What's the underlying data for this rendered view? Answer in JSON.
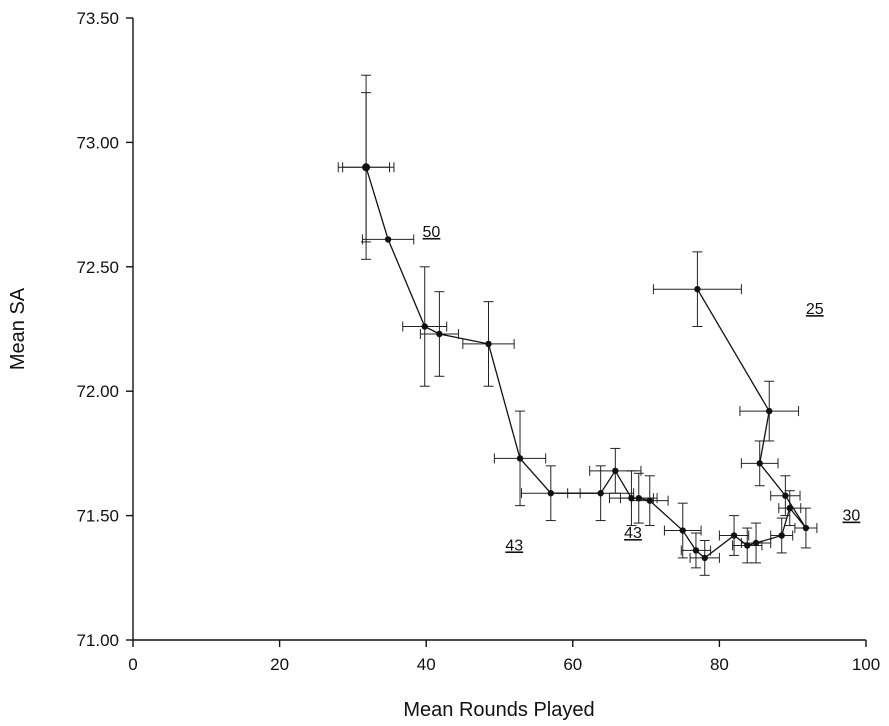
{
  "chart_data": {
    "type": "scatter",
    "title": "",
    "xlabel": "Mean Rounds Played",
    "ylabel": "Mean SA",
    "xlim": [
      0,
      100
    ],
    "ylim": [
      71.0,
      73.5
    ],
    "x_ticks": [
      0,
      20,
      40,
      60,
      80,
      100
    ],
    "x_tick_labels": [
      "0",
      "20",
      "40",
      "60",
      "80",
      "100"
    ],
    "y_ticks": [
      71.0,
      71.5,
      72.0,
      72.5,
      73.0,
      73.5
    ],
    "y_tick_labels": [
      "71.00",
      "71.50",
      "72.00",
      "72.50",
      "73.00",
      "73.50"
    ],
    "grid": false,
    "series": [
      {
        "points": [
          {
            "x": 31.8,
            "y": 72.9,
            "xerr": 3.8,
            "yerr": 0.37
          },
          {
            "x": 34.8,
            "y": 72.61,
            "xerr": 3.5,
            "yerr": 0.0
          },
          {
            "x": 39.8,
            "y": 72.26,
            "xerr": 3.0,
            "yerr": 0.24
          },
          {
            "x": 41.8,
            "y": 72.23,
            "xerr": 2.6,
            "yerr": 0.17
          },
          {
            "x": 48.5,
            "y": 72.19,
            "xerr": 3.5,
            "yerr": 0.17
          },
          {
            "x": 52.8,
            "y": 71.73,
            "xerr": 3.5,
            "yerr": 0.19
          },
          {
            "x": 57.0,
            "y": 71.59,
            "xerr": 4.0,
            "yerr": 0.11
          },
          {
            "x": 63.8,
            "y": 71.59,
            "xerr": 4.5,
            "yerr": 0.11
          },
          {
            "x": 65.8,
            "y": 71.68,
            "xerr": 3.5,
            "yerr": 0.09
          },
          {
            "x": 68.0,
            "y": 71.57,
            "xerr": 3.0,
            "yerr": 0.11
          },
          {
            "x": 69.0,
            "y": 71.57,
            "xerr": 2.5,
            "yerr": 0.1
          },
          {
            "x": 70.5,
            "y": 71.56,
            "xerr": 2.5,
            "yerr": 0.1
          },
          {
            "x": 75.0,
            "y": 71.44,
            "xerr": 2.5,
            "yerr": 0.11
          },
          {
            "x": 76.8,
            "y": 71.36,
            "xerr": 2.0,
            "yerr": 0.07
          },
          {
            "x": 78.0,
            "y": 71.33,
            "xerr": 2.0,
            "yerr": 0.07
          },
          {
            "x": 82.0,
            "y": 71.42,
            "xerr": 2.0,
            "yerr": 0.08
          },
          {
            "x": 83.8,
            "y": 71.38,
            "xerr": 2.0,
            "yerr": 0.07
          },
          {
            "x": 85.0,
            "y": 71.39,
            "xerr": 2.0,
            "yerr": 0.08
          },
          {
            "x": 88.5,
            "y": 71.42,
            "xerr": 1.5,
            "yerr": 0.07
          },
          {
            "x": 89.6,
            "y": 71.53,
            "xerr": 1.5,
            "yerr": 0.07
          },
          {
            "x": 91.8,
            "y": 71.45,
            "xerr": 1.5,
            "yerr": 0.08
          },
          {
            "x": 89.0,
            "y": 71.58,
            "xerr": 2.0,
            "yerr": 0.08
          },
          {
            "x": 85.5,
            "y": 71.71,
            "xerr": 2.5,
            "yerr": 0.09
          },
          {
            "x": 86.8,
            "y": 71.92,
            "xerr": 4.0,
            "yerr": 0.12
          },
          {
            "x": 77.0,
            "y": 72.41,
            "xerr": 6.0,
            "yerr": 0.15
          }
        ]
      },
      {
        "points": [
          {
            "x": 31.8,
            "y": 72.9,
            "xerr": 3.2,
            "yerr": 0.3
          }
        ]
      }
    ],
    "annotations": [
      {
        "text": "50",
        "x": 39.5,
        "y": 72.62
      },
      {
        "text": "43",
        "x": 50.8,
        "y": 71.36
      },
      {
        "text": "43",
        "x": 67.0,
        "y": 71.41
      },
      {
        "text": "25",
        "x": 91.8,
        "y": 72.31
      },
      {
        "text": "30",
        "x": 96.8,
        "y": 71.48
      }
    ]
  }
}
